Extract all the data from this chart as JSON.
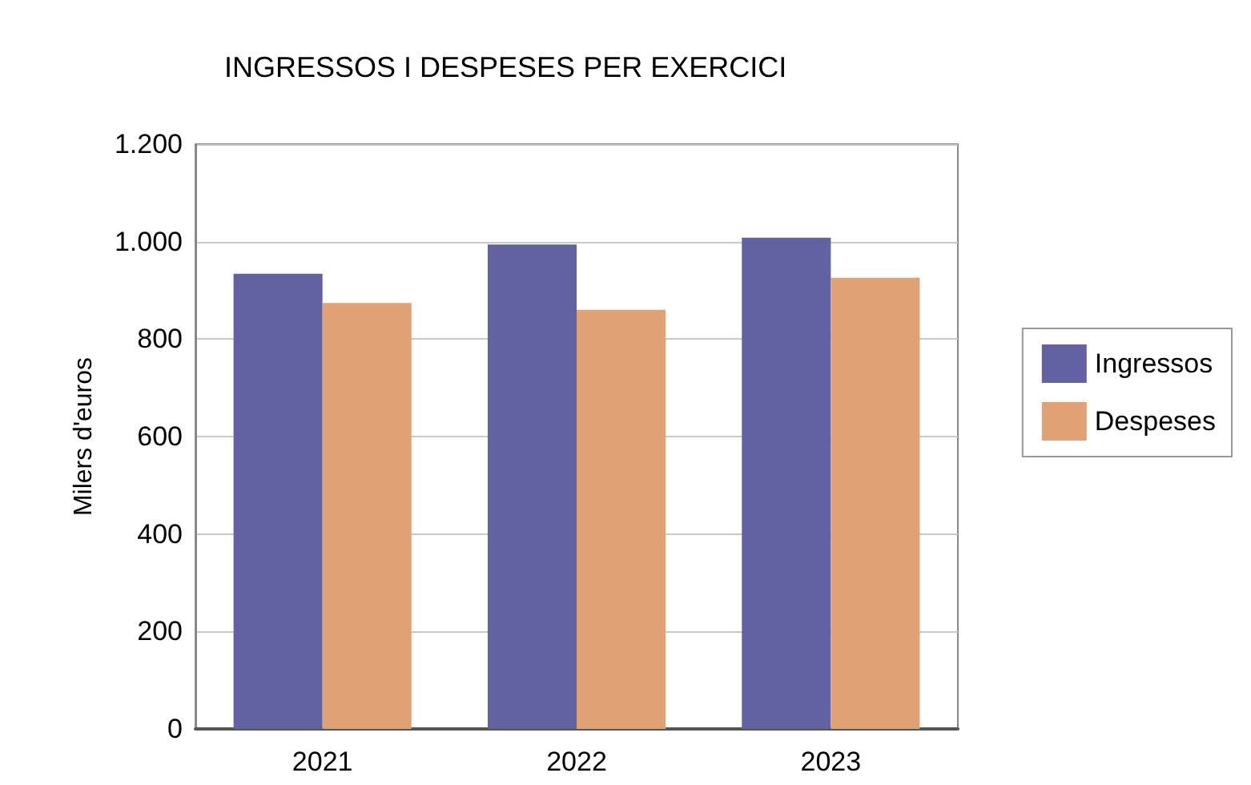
{
  "chart_data": {
    "type": "bar",
    "title": "INGRESSOS I DESPESES PER EXERCICI",
    "ylabel": "Milers d'euros",
    "categories": [
      "2021",
      "2022",
      "2023"
    ],
    "series": [
      {
        "name": "Ingressos",
        "color": "#6261a1",
        "values": [
          934,
          994,
          1008
        ]
      },
      {
        "name": "Despeses",
        "color": "#e0a175",
        "values": [
          874,
          860,
          926
        ]
      }
    ],
    "ylim": [
      0,
      1200
    ],
    "yticks": [
      0,
      200,
      400,
      600,
      800,
      {
        "value": 1000,
        "label": "1.000"
      },
      {
        "value": 1200,
        "label": "1.200"
      }
    ],
    "grid": "y",
    "legend": "right"
  }
}
